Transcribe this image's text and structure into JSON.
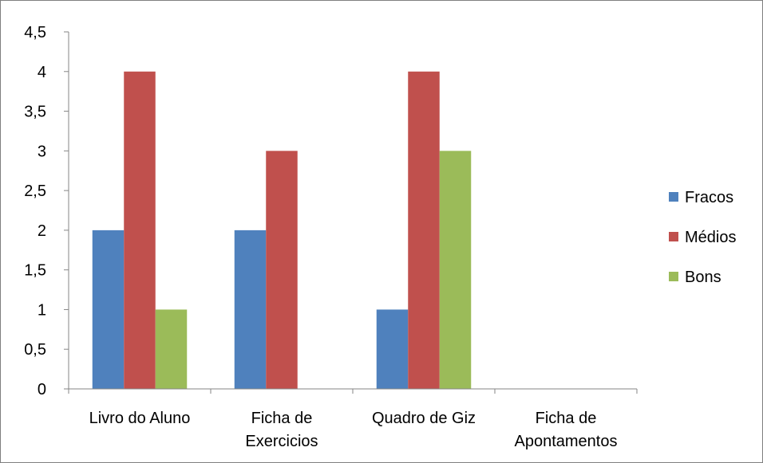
{
  "chart_data": {
    "type": "bar",
    "title": "",
    "xlabel": "",
    "ylabel": "",
    "categories": [
      [
        "Livro do Aluno"
      ],
      [
        "Ficha de",
        "Exercicios"
      ],
      [
        "Quadro de Giz"
      ],
      [
        "Ficha de",
        "Apontamentos"
      ]
    ],
    "series": [
      {
        "name": "Fracos",
        "color": "#4f81bd",
        "values": [
          2,
          2,
          1,
          0
        ]
      },
      {
        "name": "Médios",
        "color": "#c0504d",
        "values": [
          4,
          3,
          4,
          0
        ]
      },
      {
        "name": "Bons",
        "color": "#9bbb59",
        "values": [
          1,
          0,
          3,
          0
        ]
      }
    ],
    "ylim": [
      0,
      4.5
    ],
    "yticks": [
      "0",
      "0,5",
      "1",
      "1,5",
      "2",
      "2,5",
      "3",
      "3,5",
      "4",
      "4,5"
    ],
    "grid": false,
    "legend": "right"
  }
}
